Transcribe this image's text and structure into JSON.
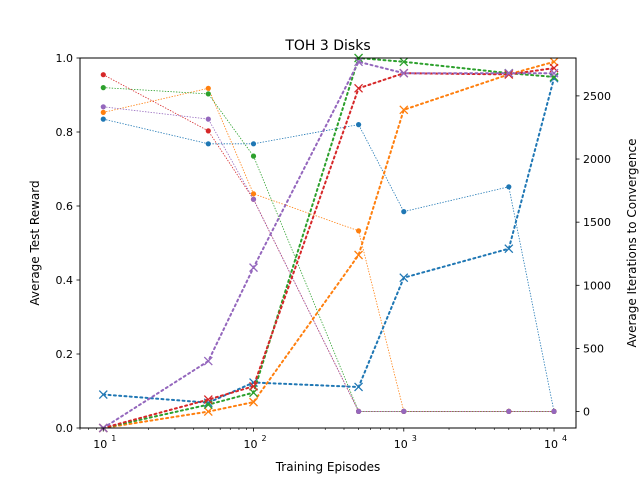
{
  "chart_data": {
    "type": "line",
    "title": "TOH 3 Disks",
    "xlabel": "Training Episodes",
    "ylabel": "Average Test Reward",
    "y2label": "Average Iterations to Convergence",
    "xscale": "log",
    "xlim": [
      7,
      14000
    ],
    "ylim": [
      0,
      1
    ],
    "y2lim": [
      -130,
      2800
    ],
    "x": [
      10,
      50,
      100,
      500,
      1000,
      5000,
      10000
    ],
    "xticks": [
      {
        "value": 10,
        "base": "10",
        "exp": "1"
      },
      {
        "value": 100,
        "base": "10",
        "exp": "2"
      },
      {
        "value": 1000,
        "base": "10",
        "exp": "3"
      },
      {
        "value": 10000,
        "base": "10",
        "exp": "4"
      }
    ],
    "yticks": [
      "0.0",
      "0.2",
      "0.4",
      "0.6",
      "0.8",
      "1.0"
    ],
    "y2ticks": [
      "0",
      "500",
      "1000",
      "1500",
      "2000",
      "2500"
    ],
    "colors": [
      "#1f77b4",
      "#ff7f0e",
      "#2ca02c",
      "#d62728",
      "#9467bd"
    ],
    "reward_series": [
      {
        "values": [
          0.835,
          0.768,
          0.768,
          0.82,
          0.585,
          0.652,
          0.045
        ]
      },
      {
        "values": [
          0.853,
          0.918,
          0.633,
          0.533,
          0.045,
          0.045,
          0.045
        ]
      },
      {
        "values": [
          0.92,
          0.903,
          0.735,
          0.045,
          0.045,
          0.045,
          0.045
        ]
      },
      {
        "values": [
          0.955,
          0.803,
          0.618,
          0.045,
          0.045,
          0.045,
          0.045
        ]
      },
      {
        "values": [
          0.868,
          0.835,
          0.618,
          0.045,
          0.045,
          0.045,
          0.045
        ]
      }
    ],
    "iteration_series": [
      {
        "values": [
          135,
          70,
          230,
          195,
          1060,
          1290,
          2640
        ]
      },
      {
        "values": [
          -130,
          0,
          75,
          1240,
          2390,
          2670,
          2770
        ]
      },
      {
        "values": [
          -130,
          55,
          150,
          2800,
          2770,
          2680,
          2650
        ]
      },
      {
        "values": [
          -130,
          95,
          200,
          2560,
          2680,
          2670,
          2720
        ]
      },
      {
        "values": [
          -130,
          400,
          1140,
          2770,
          2680,
          2680,
          2680
        ]
      }
    ]
  }
}
